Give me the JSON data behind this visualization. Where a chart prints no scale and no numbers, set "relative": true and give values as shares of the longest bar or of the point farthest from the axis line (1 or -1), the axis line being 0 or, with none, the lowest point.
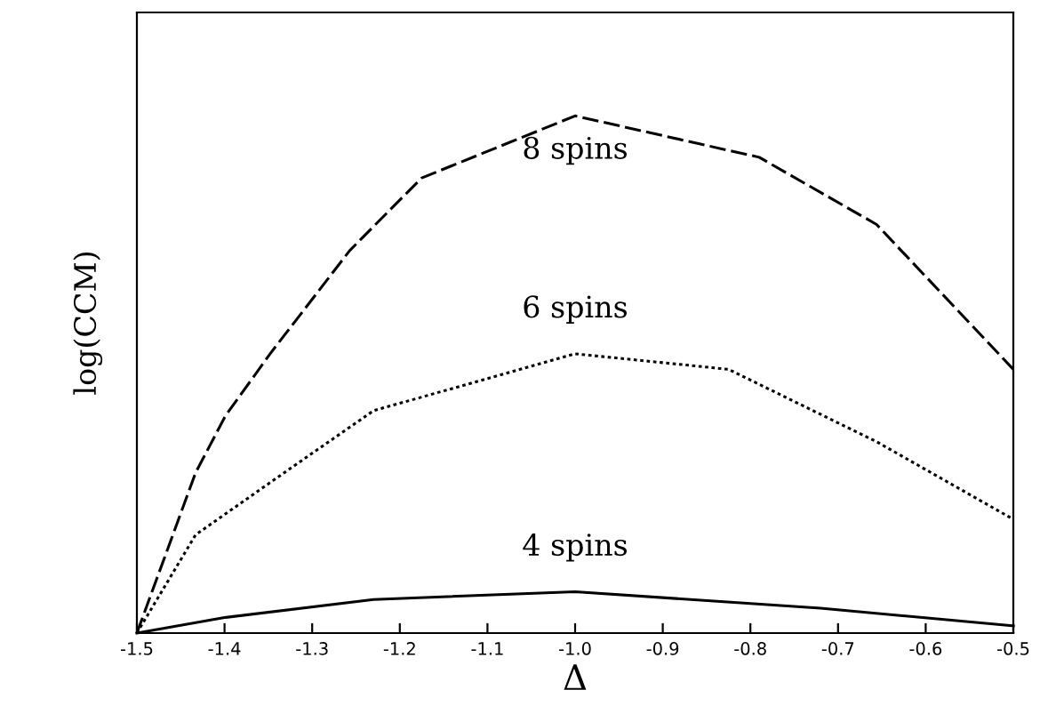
{
  "chart_data": {
    "type": "line",
    "xlabel": "Δ",
    "ylabel": "log(CCM)",
    "relative": true,
    "xlim": [
      -1.5,
      -0.5
    ],
    "xticks": [
      {
        "value": -1.5,
        "label": "-1.5"
      },
      {
        "value": -1.4,
        "label": "-1.4"
      },
      {
        "value": -1.3,
        "label": "-1.3"
      },
      {
        "value": -1.2,
        "label": "-1.2"
      },
      {
        "value": -1.1,
        "label": "-1.1"
      },
      {
        "value": -1.0,
        "label": "-1.0"
      },
      {
        "value": -0.9,
        "label": "-0.9"
      },
      {
        "value": -0.8,
        "label": "-0.8"
      },
      {
        "value": -0.7,
        "label": "-0.7"
      },
      {
        "value": -0.6,
        "label": "-0.6"
      },
      {
        "value": -0.5,
        "label": "-0.5"
      }
    ],
    "tick_labels": "x",
    "grid": false,
    "legend": false,
    "marker": "none",
    "series": [
      {
        "name": "8 spins",
        "color": "#000000",
        "line_style": "dashed",
        "x": [
          -1.5,
          -1.433,
          -1.399,
          -1.348,
          -1.257,
          -1.175,
          -1.0,
          -0.79,
          -0.656,
          -0.5
        ],
        "values": [
          0,
          0.31,
          0.42,
          0.54,
          0.74,
          0.88,
          1.0,
          0.92,
          0.79,
          0.51
        ]
      },
      {
        "name": "6 spins",
        "color": "#000000",
        "line_style": "dotted",
        "x": [
          -1.5,
          -1.433,
          -1.332,
          -1.23,
          -1.0,
          -0.825,
          -0.656,
          -0.5
        ],
        "values": [
          0,
          0.19,
          0.31,
          0.43,
          0.54,
          0.51,
          0.37,
          0.22
        ]
      },
      {
        "name": "4 spins",
        "color": "#000000",
        "line_style": "solid",
        "x": [
          -1.5,
          -1.4,
          -1.23,
          -1.0,
          -0.72,
          -0.5
        ],
        "values": [
          0,
          0.03,
          0.065,
          0.08,
          0.048,
          0.014
        ]
      }
    ]
  }
}
